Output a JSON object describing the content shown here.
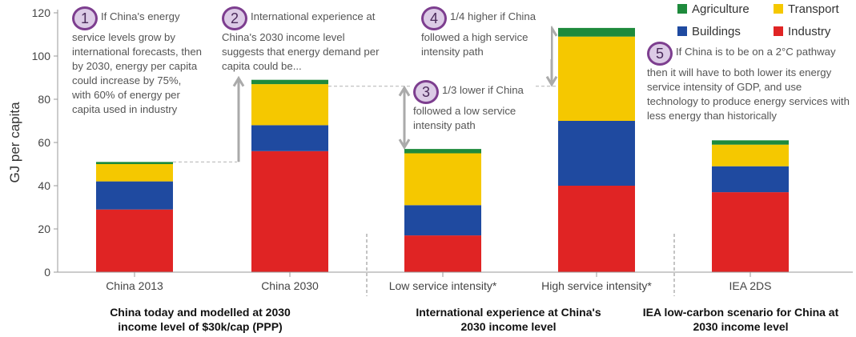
{
  "chart_data": {
    "type": "bar",
    "stacked": true,
    "ylabel": "GJ per capita",
    "ylim": [
      0,
      120
    ],
    "yticks": [
      0,
      20,
      40,
      60,
      80,
      100,
      120
    ],
    "categories": [
      "China 2013",
      "China 2030",
      "Low service intensity*",
      "High service intensity*",
      "IEA 2DS"
    ],
    "series": [
      {
        "name": "Industry",
        "color": "#e02424",
        "values": [
          29,
          56,
          17,
          40,
          37
        ]
      },
      {
        "name": "Buildings",
        "color": "#1f4aa0",
        "values": [
          13,
          12,
          14,
          30,
          12
        ]
      },
      {
        "name": "Transport",
        "color": "#f5c800",
        "values": [
          8,
          19,
          24,
          39,
          10
        ]
      },
      {
        "name": "Agriculture",
        "color": "#1e8a3c",
        "values": [
          1,
          2,
          2,
          4,
          2
        ]
      }
    ],
    "legend_position": "top-right",
    "annotations": [
      {
        "number": "1",
        "text": "If China's energy service levels grow by international forecasts, then by 2030, energy per capita could increase by 75%, with 60% of energy per capita used in industry"
      },
      {
        "number": "2",
        "text": "International experience at China's 2030 income level suggests that energy demand per capita could be..."
      },
      {
        "number": "3",
        "text": "1/3 lower if China followed a low service intensity path"
      },
      {
        "number": "4",
        "text": "1/4 higher if China followed a high service intensity path"
      },
      {
        "number": "5",
        "text": "If China is to be on a 2°C pathway then it will have to both lower its energy service intensity of GDP, and use technology to produce energy services with less energy than historically"
      }
    ],
    "group_labels": [
      "China today and modelled at 2030 income level of $30k/cap (PPP)",
      "International experience at China's 2030 income level",
      "IEA low-carbon scenario for China at 2030 income level"
    ]
  }
}
